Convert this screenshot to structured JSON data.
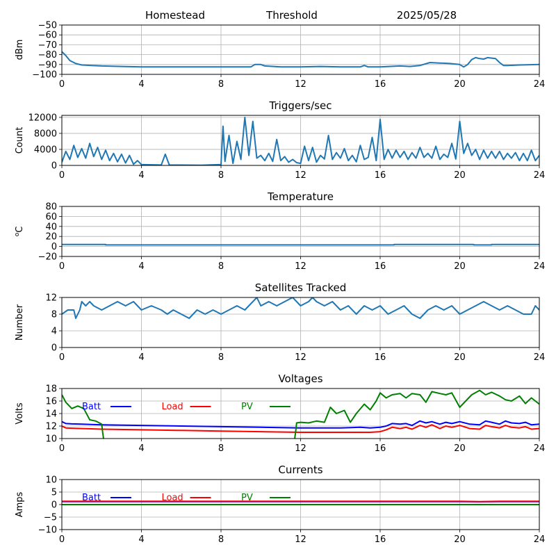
{
  "header": {
    "left": "Homestead",
    "center": "Threshold",
    "right": "2025/05/28"
  },
  "chart_data": [
    {
      "type": "line",
      "title": "",
      "ylabel": "dBm",
      "xlim": [
        0,
        24
      ],
      "ylim": [
        -100,
        -50
      ],
      "xticks": [
        0,
        4,
        8,
        12,
        16,
        20,
        24
      ],
      "yticks": [
        -100,
        -90,
        -80,
        -70,
        -60,
        -50
      ],
      "grid": true,
      "series": [
        {
          "color": "#1f77b4",
          "x": [
            0,
            0.2,
            0.4,
            0.7,
            1.0,
            1.5,
            2,
            3,
            4,
            6,
            8,
            9.5,
            9.7,
            10.0,
            10.2,
            11,
            12,
            13,
            14,
            15,
            15.2,
            15.4,
            16,
            17,
            17.5,
            18,
            18.5,
            19,
            19.5,
            20,
            20.2,
            20.4,
            20.6,
            20.8,
            21.0,
            21.2,
            21.4,
            21.6,
            21.8,
            22.0,
            22.2,
            22.4,
            23,
            24
          ],
          "y": [
            -77,
            -81,
            -86,
            -89,
            -90.5,
            -91,
            -91.5,
            -92,
            -92.5,
            -92.5,
            -92.5,
            -92.5,
            -90,
            -90,
            -91.5,
            -92.5,
            -92.5,
            -92,
            -92.5,
            -92.5,
            -91,
            -92.5,
            -92.5,
            -91.5,
            -92,
            -91,
            -88,
            -88.5,
            -89,
            -90,
            -92.5,
            -90,
            -85,
            -83,
            -84,
            -84.5,
            -83,
            -83.5,
            -84,
            -88,
            -91,
            -91,
            -90.5,
            -90
          ]
        }
      ]
    },
    {
      "type": "line",
      "title": "Triggers/sec",
      "ylabel": "Count",
      "xlim": [
        0,
        24
      ],
      "ylim": [
        0,
        12500
      ],
      "xticks": [
        0,
        4,
        8,
        12,
        16,
        20,
        24
      ],
      "yticks": [
        0,
        4000,
        8000,
        12000
      ],
      "grid": true,
      "series": [
        {
          "color": "#1f77b4",
          "x": [
            0,
            0.2,
            0.4,
            0.6,
            0.8,
            1.0,
            1.2,
            1.4,
            1.6,
            1.8,
            2.0,
            2.2,
            2.4,
            2.6,
            2.8,
            3.0,
            3.2,
            3.4,
            3.6,
            3.8,
            4.0,
            4.5,
            5.0,
            5.2,
            5.4,
            6.0,
            7.0,
            8.0,
            8.1,
            8.2,
            8.4,
            8.6,
            8.8,
            9.0,
            9.2,
            9.4,
            9.6,
            9.8,
            10.0,
            10.2,
            10.4,
            10.6,
            10.8,
            11.0,
            11.2,
            11.4,
            11.6,
            11.8,
            12.0,
            12.2,
            12.4,
            12.6,
            12.8,
            13.0,
            13.2,
            13.4,
            13.6,
            13.8,
            14.0,
            14.2,
            14.4,
            14.6,
            14.8,
            15.0,
            15.2,
            15.4,
            15.6,
            15.8,
            16.0,
            16.2,
            16.4,
            16.6,
            16.8,
            17.0,
            17.2,
            17.4,
            17.6,
            17.8,
            18.0,
            18.2,
            18.4,
            18.6,
            18.8,
            19.0,
            19.2,
            19.4,
            19.6,
            19.8,
            20.0,
            20.2,
            20.4,
            20.6,
            20.8,
            21.0,
            21.2,
            21.4,
            21.6,
            21.8,
            22.0,
            22.2,
            22.4,
            22.6,
            22.8,
            23.0,
            23.2,
            23.4,
            23.6,
            23.8,
            24.0
          ],
          "y": [
            800,
            3500,
            1500,
            5000,
            2000,
            4200,
            1800,
            5500,
            2200,
            4500,
            1500,
            3800,
            1200,
            3000,
            900,
            2800,
            600,
            2500,
            300,
            1200,
            200,
            150,
            100,
            2800,
            100,
            80,
            60,
            200,
            9800,
            1000,
            7500,
            500,
            6000,
            1500,
            12000,
            2500,
            11000,
            1800,
            2500,
            1200,
            3000,
            1000,
            6500,
            1200,
            2200,
            800,
            1500,
            700,
            500,
            4800,
            1200,
            4500,
            800,
            2500,
            1600,
            7500,
            1500,
            3200,
            1800,
            4200,
            1200,
            2500,
            900,
            5000,
            1500,
            2000,
            7000,
            1200,
            11500,
            1500,
            4000,
            1800,
            3800,
            2000,
            3500,
            1500,
            3200,
            1800,
            4500,
            2000,
            3000,
            1800,
            4800,
            1500,
            2800,
            2000,
            5500,
            1600,
            11000,
            3000,
            5500,
            2500,
            4000,
            1500,
            3800,
            1800,
            3500,
            1800,
            3500,
            1500,
            3000,
            1800,
            3200,
            1200,
            3000,
            1200,
            3800,
            1200,
            2500
          ]
        }
      ]
    },
    {
      "type": "line",
      "title": "Temperature",
      "ylabel": "°C",
      "ylabel_display": "oC",
      "xlim": [
        0,
        24
      ],
      "ylim": [
        -20,
        80
      ],
      "xticks": [
        0,
        4,
        8,
        12,
        16,
        20,
        24
      ],
      "yticks": [
        -20,
        0,
        20,
        40,
        60,
        80
      ],
      "grid": true,
      "series": [
        {
          "color": "#1f77b4",
          "x": [
            0,
            2.2,
            2.2,
            16.7,
            16.7,
            20.7,
            20.7,
            21.6,
            21.6,
            24
          ],
          "y": [
            4,
            4,
            3,
            3,
            4,
            4,
            3,
            3,
            4,
            4
          ]
        }
      ]
    },
    {
      "type": "line",
      "title": "Satellites Tracked",
      "ylabel": "Number",
      "xlim": [
        0,
        24
      ],
      "ylim": [
        0,
        12
      ],
      "xticks": [
        0,
        4,
        8,
        12,
        16,
        20,
        24
      ],
      "yticks": [
        0,
        4,
        8,
        12
      ],
      "grid": true,
      "series": [
        {
          "color": "#1f77b4",
          "x": [
            0,
            0.3,
            0.6,
            0.7,
            0.9,
            1.0,
            1.2,
            1.4,
            1.6,
            2.0,
            2.4,
            2.8,
            3.2,
            3.6,
            4.0,
            4.5,
            5.0,
            5.3,
            5.6,
            6.0,
            6.4,
            6.8,
            7.2,
            7.6,
            8.0,
            8.4,
            8.8,
            9.2,
            9.6,
            9.8,
            10.0,
            10.4,
            10.8,
            11.2,
            11.6,
            12.0,
            12.4,
            12.6,
            12.8,
            13.2,
            13.6,
            14.0,
            14.4,
            14.8,
            15.2,
            15.6,
            16.0,
            16.4,
            16.8,
            17.2,
            17.6,
            18.0,
            18.4,
            18.8,
            19.2,
            19.6,
            20.0,
            20.4,
            20.8,
            21.2,
            21.6,
            22.0,
            22.4,
            22.8,
            23.2,
            23.6,
            23.8,
            24.0
          ],
          "y": [
            8,
            9,
            9,
            7,
            9,
            11,
            10,
            11,
            10,
            9,
            10,
            11,
            10,
            11,
            9,
            10,
            9,
            8,
            9,
            8,
            7,
            9,
            8,
            9,
            8,
            9,
            10,
            9,
            11,
            12,
            10,
            11,
            10,
            11,
            12,
            10,
            11,
            12,
            11,
            10,
            11,
            9,
            10,
            8,
            10,
            9,
            10,
            8,
            9,
            10,
            8,
            7,
            9,
            10,
            9,
            10,
            8,
            9,
            10,
            11,
            10,
            9,
            10,
            9,
            8,
            8,
            10,
            9
          ]
        }
      ]
    },
    {
      "type": "line",
      "title": "Voltages",
      "ylabel": "Volts",
      "xlim": [
        0,
        24
      ],
      "ylim": [
        10,
        18
      ],
      "xticks": [
        0,
        4,
        8,
        12,
        16,
        20,
        24
      ],
      "yticks": [
        10,
        12,
        14,
        16,
        18
      ],
      "grid": true,
      "legend": "top-left",
      "series": [
        {
          "name": "Batt",
          "color": "#0000ff",
          "x": [
            0,
            0.2,
            0.5,
            1,
            2,
            4,
            6,
            8,
            10,
            12,
            14,
            15,
            15.5,
            16,
            16.3,
            16.6,
            17,
            17.3,
            17.6,
            18,
            18.3,
            18.6,
            19,
            19.3,
            19.6,
            20,
            20.5,
            21,
            21.3,
            21.6,
            22,
            22.3,
            22.6,
            23,
            23.3,
            23.6,
            24
          ],
          "y": [
            12.7,
            12.4,
            12.35,
            12.3,
            12.2,
            12.1,
            12.0,
            11.9,
            11.8,
            11.7,
            11.7,
            11.8,
            11.7,
            11.8,
            12.0,
            12.4,
            12.3,
            12.4,
            12.1,
            12.8,
            12.5,
            12.7,
            12.3,
            12.6,
            12.4,
            12.7,
            12.3,
            12.2,
            12.8,
            12.6,
            12.3,
            12.8,
            12.5,
            12.4,
            12.6,
            12.2,
            12.3
          ]
        },
        {
          "name": "Load",
          "color": "#ff0000",
          "x": [
            0,
            0.2,
            0.5,
            1,
            2,
            4,
            6,
            8,
            10,
            12,
            14,
            15,
            15.5,
            16,
            16.3,
            16.6,
            17,
            17.3,
            17.6,
            18,
            18.3,
            18.6,
            19,
            19.3,
            19.6,
            20,
            20.5,
            21,
            21.3,
            21.6,
            22,
            22.3,
            22.6,
            23,
            23.3,
            23.6,
            24
          ],
          "y": [
            12.0,
            11.7,
            11.65,
            11.6,
            11.5,
            11.4,
            11.3,
            11.2,
            11.1,
            11.0,
            11.0,
            11.0,
            11.0,
            11.1,
            11.4,
            11.8,
            11.6,
            11.8,
            11.5,
            12.1,
            11.8,
            12.2,
            11.6,
            12.0,
            11.8,
            12.1,
            11.6,
            11.5,
            12.1,
            11.9,
            11.7,
            12.1,
            11.8,
            11.7,
            11.9,
            11.5,
            11.6
          ]
        },
        {
          "name": "PV",
          "color": "#008000",
          "x": [
            0,
            0.2,
            0.5,
            0.8,
            1.1,
            1.4,
            1.7,
            2.0,
            2.05,
            2.1,
            11.7,
            11.75,
            11.8,
            12.0,
            12.4,
            12.8,
            13.2,
            13.5,
            13.8,
            14.2,
            14.5,
            14.8,
            15.2,
            15.5,
            15.8,
            16.0,
            16.3,
            16.6,
            17.0,
            17.3,
            17.6,
            18.0,
            18.3,
            18.6,
            19.0,
            19.3,
            19.6,
            20.0,
            20.3,
            20.6,
            21.0,
            21.3,
            21.6,
            22.0,
            22.3,
            22.6,
            23.0,
            23.3,
            23.6,
            24.0
          ],
          "y": [
            17.0,
            15.8,
            14.8,
            15.2,
            14.8,
            13.0,
            12.8,
            12.3,
            11.0,
            9.9,
            9.9,
            11.0,
            12.5,
            12.6,
            12.5,
            12.8,
            12.6,
            15.0,
            14.0,
            14.5,
            12.6,
            14.0,
            15.5,
            14.6,
            16.0,
            17.3,
            16.5,
            17.0,
            17.2,
            16.5,
            17.2,
            17.0,
            15.8,
            17.5,
            17.2,
            17.0,
            17.3,
            15.0,
            16.0,
            17.0,
            17.7,
            17.0,
            17.4,
            16.8,
            16.2,
            16.0,
            16.8,
            15.6,
            16.5,
            15.5
          ]
        }
      ]
    },
    {
      "type": "line",
      "title": "Currents",
      "ylabel": "Amps",
      "xlim": [
        0,
        24
      ],
      "ylim": [
        -10,
        10
      ],
      "xticks": [
        0,
        4,
        8,
        12,
        16,
        20,
        24
      ],
      "yticks": [
        -10,
        -5,
        0,
        5,
        10
      ],
      "grid": true,
      "legend": "top-left",
      "series": [
        {
          "name": "Batt",
          "color": "#0000ff",
          "x": [
            0,
            4,
            8,
            12,
            16,
            20,
            21,
            22,
            24
          ],
          "y": [
            1.2,
            1.2,
            1.2,
            1.2,
            1.2,
            1.2,
            1.1,
            1.2,
            1.2
          ]
        },
        {
          "name": "Load",
          "color": "#ff0000",
          "x": [
            0,
            4,
            8,
            12,
            16,
            20,
            21,
            22,
            24
          ],
          "y": [
            1.3,
            1.3,
            1.3,
            1.3,
            1.3,
            1.3,
            1.2,
            1.3,
            1.3
          ]
        },
        {
          "name": "PV",
          "color": "#008000",
          "x": [
            0,
            24
          ],
          "y": [
            0.0,
            0.0
          ]
        }
      ]
    }
  ]
}
